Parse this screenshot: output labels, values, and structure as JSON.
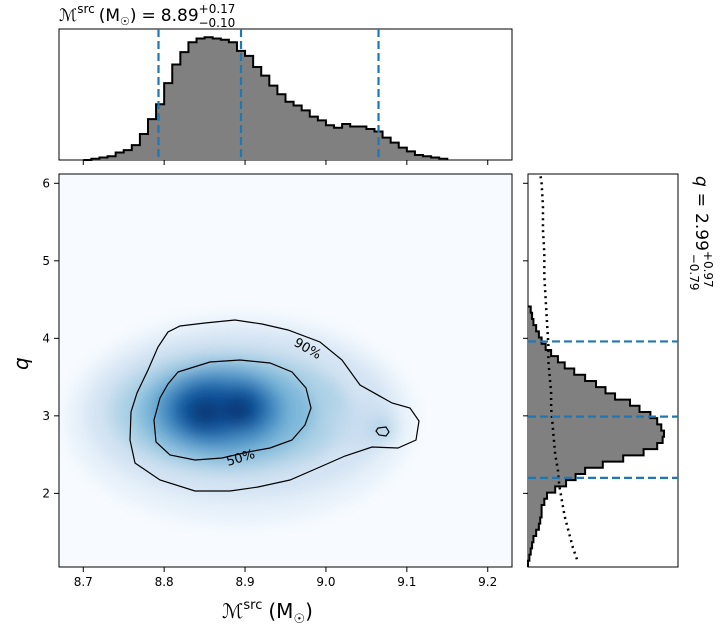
{
  "chart_data": {
    "type": "heatmap",
    "top_title": {
      "symbol": "ℳ",
      "superscript": "src",
      "unit": "(M",
      "unit_sub": "☉",
      "unit_close": ")",
      "equals": "=",
      "value": "8.89",
      "plus": "+0.17",
      "minus": "−0.10"
    },
    "right_title": {
      "symbol": "q",
      "equals": "=",
      "value": "2.99",
      "plus": "+0.97",
      "minus": "−0.79"
    },
    "xlabel": {
      "symbol": "ℳ",
      "superscript": "src",
      "unit": "(M",
      "unit_sub": "☉",
      "unit_close": ")"
    },
    "ylabel": "q",
    "xlim": [
      8.67,
      9.23
    ],
    "ylim": [
      1.05,
      6.12
    ],
    "xticks": [
      "8.7",
      "8.8",
      "8.9",
      "9.0",
      "9.1",
      "9.2"
    ],
    "yticks": [
      "2",
      "3",
      "4",
      "5",
      "6"
    ],
    "contour_labels": [
      "90%",
      "50%"
    ],
    "colors": {
      "hist_fill": "#808080",
      "quantile_line": "#1f77b4",
      "heat": "#08306b"
    },
    "chirp_mass_hist": {
      "bins": [
        8.7,
        8.71,
        8.72,
        8.73,
        8.74,
        8.75,
        8.76,
        8.77,
        8.78,
        8.79,
        8.8,
        8.81,
        8.82,
        8.83,
        8.84,
        8.85,
        8.86,
        8.87,
        8.88,
        8.89,
        8.9,
        8.91,
        8.92,
        8.93,
        8.94,
        8.95,
        8.96,
        8.97,
        8.98,
        8.99,
        9.0,
        9.01,
        9.02,
        9.03,
        9.04,
        9.05,
        9.06,
        9.07,
        9.08,
        9.09,
        9.1,
        9.11,
        9.12,
        9.13,
        9.14,
        9.15
      ],
      "density": [
        0.0,
        0.01,
        0.02,
        0.03,
        0.06,
        0.08,
        0.12,
        0.21,
        0.33,
        0.45,
        0.62,
        0.77,
        0.87,
        0.95,
        0.98,
        0.99,
        0.98,
        0.97,
        0.95,
        0.88,
        0.84,
        0.75,
        0.68,
        0.6,
        0.53,
        0.47,
        0.44,
        0.4,
        0.35,
        0.32,
        0.28,
        0.26,
        0.29,
        0.27,
        0.27,
        0.25,
        0.23,
        0.18,
        0.14,
        0.1,
        0.07,
        0.04,
        0.03,
        0.02,
        0.01,
        0.0
      ],
      "quantiles": [
        8.793,
        8.895,
        9.065
      ]
    },
    "q_hist": {
      "bins": [
        1.05,
        1.13,
        1.21,
        1.29,
        1.37,
        1.45,
        1.53,
        1.61,
        1.69,
        1.77,
        1.85,
        1.93,
        2.01,
        2.09,
        2.17,
        2.25,
        2.33,
        2.41,
        2.49,
        2.57,
        2.65,
        2.73,
        2.81,
        2.89,
        2.97,
        3.05,
        3.13,
        3.21,
        3.29,
        3.37,
        3.45,
        3.53,
        3.61,
        3.69,
        3.77,
        3.85,
        3.93,
        4.01,
        4.09,
        4.17,
        4.25,
        4.33,
        4.41
      ],
      "density": [
        0.0,
        0.01,
        0.02,
        0.03,
        0.04,
        0.06,
        0.08,
        0.09,
        0.1,
        0.1,
        0.12,
        0.14,
        0.2,
        0.28,
        0.35,
        0.42,
        0.55,
        0.7,
        0.85,
        0.95,
        0.99,
        1.0,
        0.98,
        0.95,
        0.9,
        0.82,
        0.75,
        0.64,
        0.57,
        0.5,
        0.42,
        0.34,
        0.27,
        0.22,
        0.17,
        0.13,
        0.1,
        0.08,
        0.06,
        0.04,
        0.03,
        0.02,
        0.0
      ],
      "quantiles": [
        2.2,
        2.99,
        3.96
      ]
    },
    "q_prior_dotted": {
      "q": [
        1.15,
        1.3,
        1.5,
        1.7,
        1.9,
        2.1,
        2.3,
        2.5,
        2.7,
        2.9,
        3.1,
        3.3,
        3.5,
        3.7,
        3.9,
        4.2,
        4.5,
        4.8,
        5.1,
        5.4,
        5.7,
        6.0,
        6.12
      ],
      "density": [
        0.36,
        0.33,
        0.3,
        0.27,
        0.25,
        0.23,
        0.22,
        0.2,
        0.19,
        0.18,
        0.17,
        0.17,
        0.16,
        0.15,
        0.15,
        0.14,
        0.13,
        0.12,
        0.12,
        0.11,
        0.11,
        0.1,
        0.09
      ]
    }
  }
}
